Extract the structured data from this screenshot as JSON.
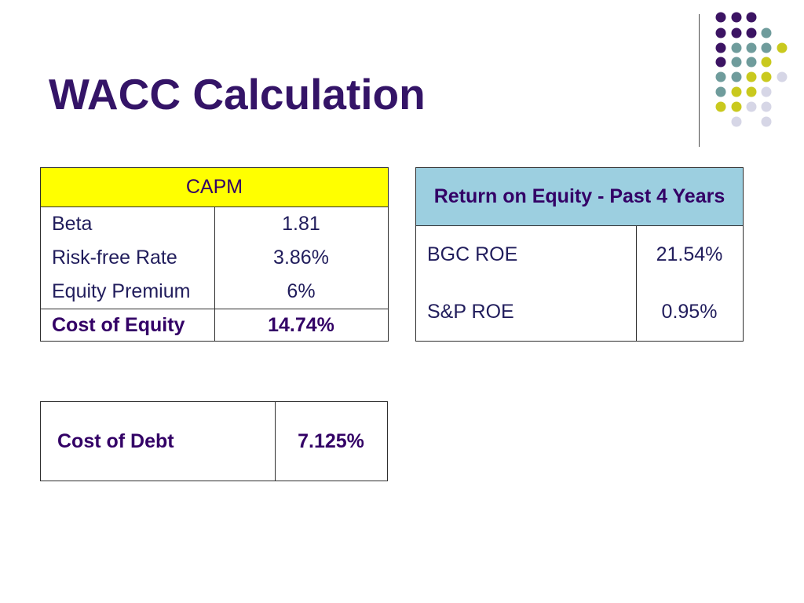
{
  "slide": {
    "title": "WACC Calculation"
  },
  "capm_table": {
    "header": "CAPM",
    "rows": [
      {
        "label": "Beta",
        "value": "1.81"
      },
      {
        "label": "Risk-free Rate",
        "value": "3.86%"
      },
      {
        "label": "Equity Premium",
        "value": "6%"
      }
    ],
    "total": {
      "label": "Cost of Equity",
      "value": "14.74%"
    }
  },
  "roe_table": {
    "header": "Return on Equity - Past 4 Years",
    "rows": [
      {
        "label": "BGC ROE",
        "value": "21.54%"
      },
      {
        "label": "S&P ROE",
        "value": "0.95%"
      }
    ]
  },
  "debt_table": {
    "label": "Cost of Debt",
    "value": "7.125%"
  },
  "colors": {
    "title": "#341467",
    "text": "#211d5c",
    "text-strong": "#330066",
    "capm-header-bg": "#ffff00",
    "roe-header-bg": "#9ccfe0",
    "border": "#2e2e2e",
    "rule": "#4d4d4d",
    "dot-purple": "#3c1463",
    "dot-teal": "#6f9c9c",
    "dot-yellow": "#c9c91e",
    "dot-lavender": "#d6d6e6"
  }
}
